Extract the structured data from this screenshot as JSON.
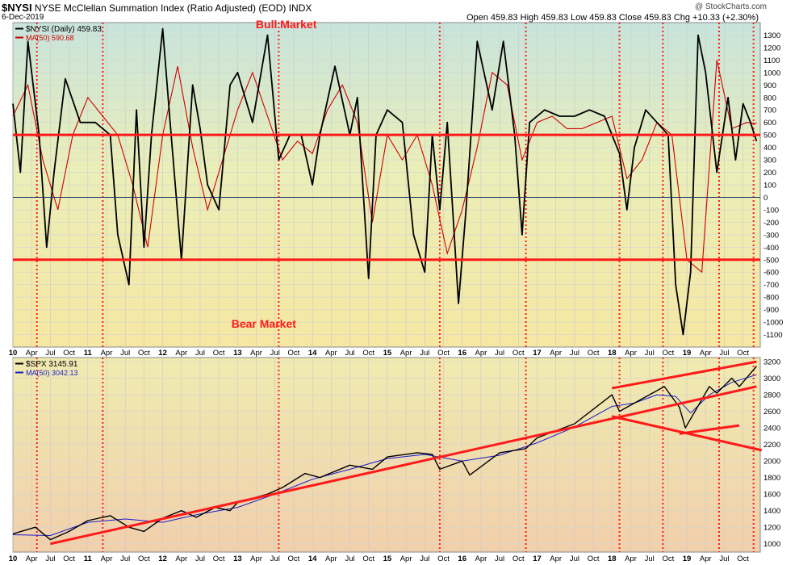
{
  "header": {
    "symbol": "$NYSI",
    "name": "NYSE McClellan Summation Index (Ratio Adjusted) (EOD)",
    "exchange": "INDX",
    "date": "6-Dec-2019",
    "ohlc": "Open 459.83  High 459.83  Low 459.83  Close 459.83  Chg +10.33 (+2.30%)",
    "credit": "@ StockCharts.com"
  },
  "colors": {
    "price_line": "#000000",
    "nysi_ma": "#cc0000",
    "spx_ma": "#1a1acc",
    "annotation": "#ff1a1a"
  },
  "chart_data": [
    {
      "type": "line",
      "legend": [
        "$NYSI (Daily) 459.83",
        "MA(50) 590.68"
      ],
      "annotations": [
        "Bull Market",
        "Bear Market"
      ],
      "ylim": [
        -1200,
        1400
      ],
      "y_ticks": [
        1300,
        1200,
        1100,
        1000,
        900,
        800,
        700,
        600,
        500,
        400,
        300,
        200,
        100,
        0,
        -100,
        -200,
        -300,
        -400,
        -500,
        -600,
        -700,
        -800,
        -900,
        -1000,
        -1100
      ],
      "horizontal_lines": [
        500,
        -500,
        0
      ],
      "series": [
        {
          "x": [
            2010.0,
            2010.1,
            2010.2,
            2010.35,
            2010.45,
            2010.55,
            2010.7,
            2010.9,
            2011.1,
            2011.3,
            2011.4,
            2011.55,
            2011.65,
            2011.75,
            2011.85,
            2012.0,
            2012.1,
            2012.25,
            2012.4,
            2012.5,
            2012.6,
            2012.75,
            2012.9,
            2013.0,
            2013.2,
            2013.4,
            2013.55,
            2013.7,
            2013.85,
            2014.0,
            2014.1,
            2014.3,
            2014.5,
            2014.6,
            2014.75,
            2014.85,
            2015.0,
            2015.2,
            2015.35,
            2015.5,
            2015.6,
            2015.7,
            2015.8,
            2015.95,
            2016.05,
            2016.2,
            2016.4,
            2016.55,
            2016.7,
            2016.8,
            2016.9,
            2017.1,
            2017.3,
            2017.5,
            2017.7,
            2017.9,
            2018.1,
            2018.2,
            2018.3,
            2018.45,
            2018.6,
            2018.75,
            2018.85,
            2018.95,
            2019.05,
            2019.15,
            2019.25,
            2019.4,
            2019.55,
            2019.65,
            2019.75,
            2019.85,
            2019.93
          ],
          "values": [
            750,
            200,
            1250,
            500,
            -400,
            200,
            950,
            600,
            600,
            500,
            -300,
            -700,
            700,
            -400,
            500,
            1350,
            600,
            -500,
            900,
            550,
            100,
            -100,
            900,
            1000,
            600,
            1300,
            300,
            500,
            500,
            100,
            500,
            1050,
            500,
            800,
            -650,
            500,
            700,
            600,
            -300,
            -600,
            500,
            -100,
            600,
            -850,
            -100,
            1250,
            700,
            1250,
            500,
            -300,
            600,
            700,
            650,
            650,
            700,
            650,
            350,
            -100,
            400,
            700,
            600,
            500,
            -700,
            -1100,
            -600,
            1300,
            1000,
            200,
            800,
            300,
            750,
            600,
            450
          ]
        },
        {
          "name": "MA(50)",
          "x": [
            2010.0,
            2010.2,
            2010.4,
            2010.6,
            2010.8,
            2011.0,
            2011.2,
            2011.4,
            2011.6,
            2011.8,
            2012.0,
            2012.2,
            2012.4,
            2012.6,
            2012.8,
            2013.0,
            2013.2,
            2013.4,
            2013.6,
            2013.8,
            2014.0,
            2014.2,
            2014.4,
            2014.6,
            2014.8,
            2015.0,
            2015.2,
            2015.4,
            2015.6,
            2015.8,
            2016.0,
            2016.2,
            2016.4,
            2016.6,
            2016.8,
            2017.0,
            2017.2,
            2017.4,
            2017.6,
            2017.8,
            2018.0,
            2018.2,
            2018.4,
            2018.6,
            2018.8,
            2019.0,
            2019.2,
            2019.4,
            2019.6,
            2019.8,
            2019.93
          ],
          "values": [
            650,
            900,
            300,
            -100,
            500,
            800,
            650,
            500,
            100,
            -400,
            500,
            1050,
            400,
            -100,
            300,
            700,
            1000,
            650,
            300,
            450,
            350,
            700,
            900,
            600,
            -200,
            500,
            300,
            500,
            100,
            -450,
            -100,
            400,
            1000,
            900,
            300,
            600,
            650,
            550,
            550,
            600,
            650,
            150,
            300,
            600,
            500,
            -500,
            -600,
            1100,
            550,
            600,
            590
          ]
        }
      ]
    },
    {
      "type": "line",
      "legend": [
        "$SPX 3145.91",
        "MA(50) 3042.13"
      ],
      "ylim": [
        900,
        3250
      ],
      "y_ticks": [
        3200,
        3000,
        2800,
        2600,
        2400,
        2200,
        2000,
        1800,
        1600,
        1400,
        1200,
        1000
      ],
      "x_labels": [
        "10",
        "Apr",
        "Jul",
        "Oct",
        "11",
        "Apr",
        "Jul",
        "Oct",
        "12",
        "Apr",
        "Jul",
        "Oct",
        "13",
        "Apr",
        "Jul",
        "Oct",
        "14",
        "Apr",
        "Jul",
        "Oct",
        "15",
        "Apr",
        "Jul",
        "Oct",
        "16",
        "Apr",
        "Jul",
        "Oct",
        "17",
        "Apr",
        "Jul",
        "Oct",
        "18",
        "Apr",
        "Jul",
        "Oct",
        "19",
        "Apr",
        "Jul",
        "Oct"
      ],
      "series": [
        {
          "name": "$SPX",
          "x": [
            2010.0,
            2010.3,
            2010.5,
            2010.75,
            2011.0,
            2011.3,
            2011.55,
            2011.75,
            2012.0,
            2012.25,
            2012.45,
            2012.7,
            2012.9,
            2013.0,
            2013.4,
            2013.6,
            2013.9,
            2014.1,
            2014.5,
            2014.8,
            2015.0,
            2015.4,
            2015.6,
            2015.7,
            2016.0,
            2016.1,
            2016.5,
            2016.85,
            2017.0,
            2017.5,
            2018.0,
            2018.1,
            2018.2,
            2018.5,
            2018.7,
            2018.9,
            2018.98,
            2019.3,
            2019.4,
            2019.6,
            2019.7,
            2019.93
          ],
          "values": [
            1120,
            1200,
            1050,
            1150,
            1280,
            1340,
            1200,
            1150,
            1310,
            1400,
            1320,
            1440,
            1400,
            1500,
            1600,
            1680,
            1850,
            1800,
            1950,
            1900,
            2050,
            2100,
            2080,
            1900,
            2000,
            1830,
            2100,
            2150,
            2280,
            2450,
            2800,
            2600,
            2650,
            2800,
            2900,
            2650,
            2400,
            2900,
            2820,
            3000,
            2900,
            3146
          ]
        },
        {
          "name": "MA(50)",
          "x": [
            2010.0,
            2010.5,
            2011.0,
            2011.5,
            2012.0,
            2012.5,
            2013.0,
            2013.5,
            2014.0,
            2014.5,
            2015.0,
            2015.5,
            2016.0,
            2016.5,
            2017.0,
            2017.5,
            2018.0,
            2018.3,
            2018.6,
            2018.85,
            2019.05,
            2019.3,
            2019.6,
            2019.93
          ],
          "values": [
            1110,
            1100,
            1260,
            1300,
            1260,
            1360,
            1440,
            1600,
            1780,
            1900,
            2030,
            2080,
            2000,
            2070,
            2220,
            2410,
            2660,
            2700,
            2800,
            2780,
            2580,
            2800,
            2950,
            3042
          ]
        }
      ],
      "trendlines": [
        {
          "x": [
            2010.5,
            2019.93
          ],
          "y": [
            1000,
            2900
          ]
        },
        {
          "x": [
            2018.0,
            2019.93
          ],
          "y": [
            2880,
            3200
          ]
        },
        {
          "x": [
            2018.0,
            2020.0
          ],
          "y": [
            2540,
            2130
          ]
        },
        {
          "x": [
            2018.9,
            2019.7
          ],
          "y": [
            2330,
            2430
          ]
        }
      ]
    }
  ],
  "vertical_markers": [
    2010.32,
    2011.2,
    2013.55,
    2015.7,
    2016.85,
    2018.1,
    2018.68,
    2019.43,
    2019.89
  ]
}
